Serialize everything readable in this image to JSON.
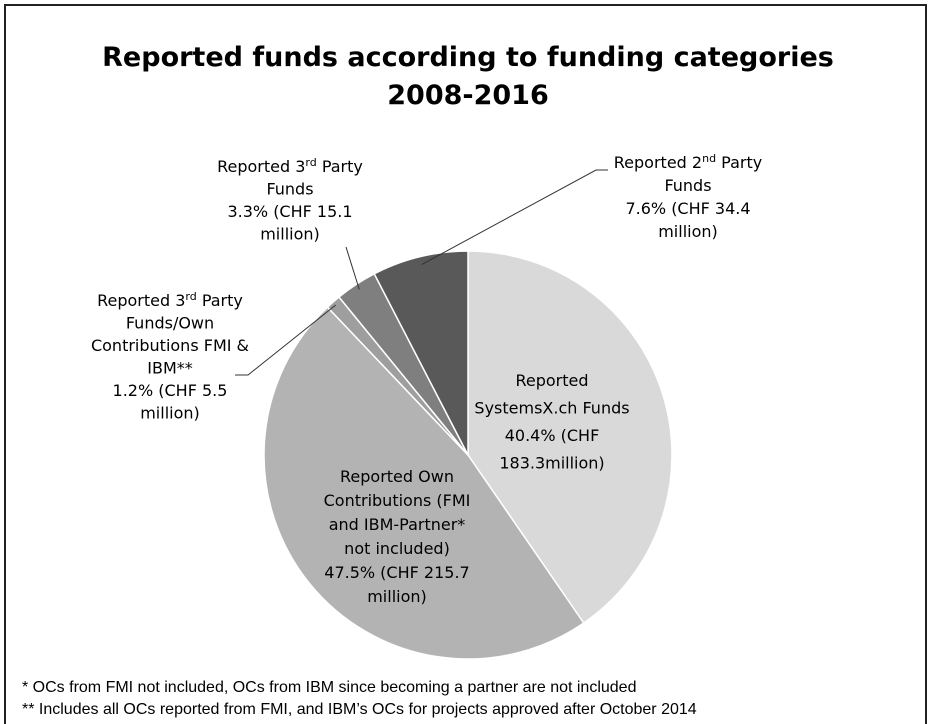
{
  "chart_data": {
    "type": "pie",
    "title": "Reported funds according to funding categories",
    "subtitle": "2008-2016",
    "slices": [
      {
        "key": "systemsx",
        "label": "Reported SystemsX.ch Funds",
        "percent": 40.4,
        "value_text": "40.4% (CHF 183.3million)",
        "amount_chf_million": 183.3,
        "color": "#d9d9d9"
      },
      {
        "key": "own",
        "label": "Reported Own Contributions (FMI and IBM-Partner* not included)",
        "percent": 47.5,
        "value_text": "47.5% (CHF 215.7 million)",
        "amount_chf_million": 215.7,
        "color": "#b3b3b3"
      },
      {
        "key": "fmi",
        "label": "Reported 3rd Party Funds/Own Contributions FMI & IBM**",
        "percent": 1.2,
        "value_text": "1.2% (CHF 5.5 million)",
        "amount_chf_million": 5.5,
        "color": "#9e9e9e"
      },
      {
        "key": "third",
        "label": "Reported 3rd Party Funds",
        "percent": 3.3,
        "value_text": "3.3% (CHF 15.1 million)",
        "amount_chf_million": 15.1,
        "color": "#7f7f7f"
      },
      {
        "key": "second",
        "label": "Reported 2nd Party Funds",
        "percent": 7.6,
        "value_text": "7.6% (CHF 34.4 million)",
        "amount_chf_million": 34.4,
        "color": "#595959"
      }
    ],
    "label_lines": {
      "systemsx": [
        "Reported",
        "SystemsX.ch Funds",
        "40.4% (CHF",
        "183.3million)"
      ],
      "own": [
        "Reported Own",
        "Contributions (FMI",
        "and IBM-Partner*",
        "not included)",
        "47.5% (CHF 215.7",
        "million)"
      ],
      "fmi": [
        [
          "Reported 3",
          "rd",
          " Party"
        ],
        "Funds/Own",
        "Contributions FMI &",
        "IBM**",
        "1.2% (CHF 5.5",
        "million)"
      ],
      "third": [
        [
          "Reported 3",
          "rd",
          " Party"
        ],
        "Funds",
        "3.3% (CHF 15.1",
        "million)"
      ],
      "second": [
        [
          "Reported 2",
          "nd",
          " Party"
        ],
        "Funds",
        "7.6% (CHF 34.4",
        "million)"
      ]
    },
    "footnotes": [
      "*  OCs from FMI not included, OCs from IBM since becoming a partner are not included",
      "** Includes all OCs reported from FMI, and IBM’s OCs for projects approved after October 2014"
    ]
  }
}
